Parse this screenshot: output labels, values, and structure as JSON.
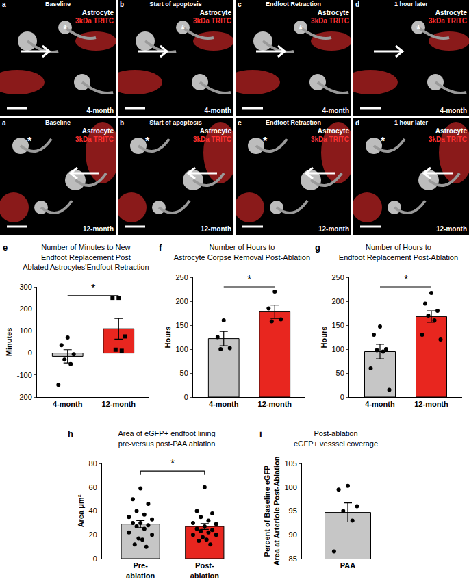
{
  "panels": [
    {
      "letter": "a",
      "title": "Baseline"
    },
    {
      "letter": "b",
      "title": "Start of apoptosis"
    },
    {
      "letter": "c",
      "title": "Endfoot Retraction"
    },
    {
      "letter": "d",
      "title": "1 hour later"
    }
  ],
  "rows": [
    {
      "age": "4-month"
    },
    {
      "age": "12-month"
    }
  ],
  "channels": {
    "astrocyte": "Astrocyte",
    "dye": "3kDa TRITC"
  },
  "asterisk": "*",
  "chart_data": [
    {
      "type": "bar",
      "panel": "e",
      "title": "Number of Minutes to New\nEndfoot Replacement Post\nAblated Astrocytes'Endfoot Retraction",
      "y_label": "Minutes",
      "categories": [
        "4-month",
        "12-month"
      ],
      "values": [
        -15,
        110
      ],
      "errors": [
        30,
        47
      ],
      "colors": [
        "#c6c6c6",
        "#e8261f"
      ],
      "marker": [
        "circle",
        "square"
      ],
      "points": [
        [
          70,
          35,
          -5,
          -30,
          -50,
          -145
        ],
        [
          250,
          250,
          75,
          15,
          10
        ]
      ],
      "ylim": [
        -200,
        300
      ],
      "yticks": [
        -200,
        -100,
        0,
        100,
        200,
        300
      ],
      "significance": "*"
    },
    {
      "type": "bar",
      "panel": "f",
      "title": "Number of Hours to\nAstrocyte Corpse Removal Post-Ablation",
      "y_label": "Hours",
      "categories": [
        "4-month",
        "12-month"
      ],
      "values": [
        122,
        178
      ],
      "errors": [
        15,
        14
      ],
      "colors": [
        "#c6c6c6",
        "#e8261f"
      ],
      "marker": [
        "circle",
        "circle"
      ],
      "points": [
        [
          160,
          125,
          102,
          100
        ],
        [
          220,
          185,
          162,
          158
        ]
      ],
      "ylim": [
        0,
        250
      ],
      "yticks": [
        0,
        50,
        100,
        150,
        200,
        250
      ],
      "significance": "*"
    },
    {
      "type": "bar",
      "panel": "g",
      "title": "Number of Hours to\nEndfoot Replacement Post-Ablation",
      "y_label": "Hours",
      "categories": [
        "4-month",
        "12-month"
      ],
      "values": [
        95,
        168
      ],
      "errors": [
        15,
        12
      ],
      "colors": [
        "#c6c6c6",
        "#e8261f"
      ],
      "marker": [
        "circle",
        "circle"
      ],
      "points": [
        [
          147,
          130,
          100,
          98,
          95,
          60,
          15
        ],
        [
          217,
          195,
          180,
          170,
          160,
          130,
          120
        ]
      ],
      "ylim": [
        0,
        250
      ],
      "yticks": [
        0,
        50,
        100,
        150,
        200,
        250
      ],
      "significance": "*"
    },
    {
      "type": "bar",
      "panel": "h",
      "title": "Area of eGFP+ endfoot lining\npre-versus post-PAA ablation",
      "y_label": "Area μm²",
      "categories": [
        "Pre-\nablation",
        "Post-\nablation"
      ],
      "values": [
        29,
        27
      ],
      "errors": [
        3,
        2.5
      ],
      "colors": [
        "#c6c6c6",
        "#e8261f"
      ],
      "marker": [
        "circle",
        "circle"
      ],
      "points": [
        [
          59,
          50,
          46,
          40,
          37,
          35,
          33,
          30,
          30,
          28,
          27,
          25,
          22,
          20,
          17,
          16,
          12,
          10
        ],
        [
          60,
          40,
          38,
          35,
          32,
          30,
          29,
          27,
          25,
          24,
          23,
          22,
          20,
          20,
          18,
          16,
          15,
          12
        ]
      ],
      "ylim": [
        0,
        80
      ],
      "yticks": [
        0,
        20,
        40,
        60,
        80
      ],
      "significance": "*"
    },
    {
      "type": "bar",
      "panel": "i",
      "title": "Post-ablation\neGFP+ vesssel coverage",
      "y_label": "Percent of Baseline eGFP\nArea at Arteriole Post-Ablation",
      "categories": [
        "PAA"
      ],
      "values": [
        94.7
      ],
      "errors": [
        2
      ],
      "colors": [
        "#c6c6c6"
      ],
      "marker": [
        "circle"
      ],
      "points": [
        [
          100.3,
          99.5,
          96,
          95,
          93,
          86.5
        ]
      ],
      "ylim": [
        85,
        105
      ],
      "yticks": [
        85,
        90,
        95,
        100,
        105
      ]
    }
  ]
}
